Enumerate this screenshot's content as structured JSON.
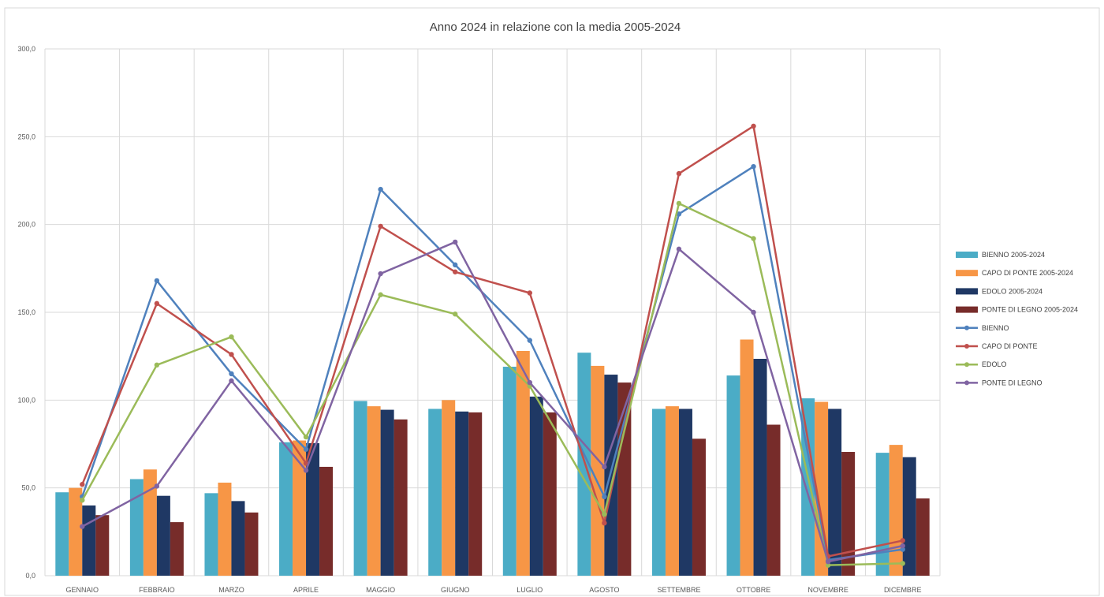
{
  "chart_data": {
    "type": "bar",
    "title": "Anno 2024 in relazione con la media 2005-2024",
    "xlabel": "",
    "ylabel": "",
    "ylim": [
      0,
      300
    ],
    "yticks": [
      0,
      50,
      100,
      150,
      200,
      250,
      300
    ],
    "ytick_labels": [
      "0,0",
      "50,0",
      "100,0",
      "150,0",
      "200,0",
      "250,0",
      "300,0"
    ],
    "grid": true,
    "legend_position": "right",
    "categories": [
      "GENNAIO",
      "FEBBRAIO",
      "MARZO",
      "APRILE",
      "MAGGIO",
      "GIUGNO",
      "LUGLIO",
      "AGOSTO",
      "SETTEMBRE",
      "OTTOBRE",
      "NOVEMBRE",
      "DICEMBRE"
    ],
    "bar_series": [
      {
        "name": "BIENNO 2005-2024",
        "color": "#4bacc6",
        "values": [
          47.5,
          55,
          47,
          76,
          99.5,
          95,
          119,
          127,
          95,
          114,
          101,
          70
        ]
      },
      {
        "name": "CAPO DI PONTE 2005-2024",
        "color": "#f79646",
        "values": [
          50,
          60.5,
          53,
          77,
          96.5,
          100,
          128,
          119.5,
          96.5,
          134.5,
          99,
          74.5
        ]
      },
      {
        "name": "EDOLO 2005-2024",
        "color": "#1f3864",
        "values": [
          40,
          45.5,
          42.5,
          75.5,
          94.5,
          93.5,
          102,
          114.5,
          95,
          123.5,
          95,
          67.5
        ]
      },
      {
        "name": "PONTE DI LEGNO 2005-2024",
        "color": "#772c2a",
        "values": [
          34.5,
          30.5,
          36,
          62,
          89,
          93,
          93,
          110,
          78,
          86,
          70.5,
          44
        ]
      }
    ],
    "line_series": [
      {
        "name": "BIENNO",
        "color": "#4f81bd",
        "values": [
          45,
          168,
          115,
          72,
          220,
          177,
          134,
          45,
          206,
          233,
          9,
          15
        ]
      },
      {
        "name": "CAPO DI PONTE",
        "color": "#c0504d",
        "values": [
          52,
          155,
          126,
          64,
          199,
          173,
          161,
          30,
          229,
          256,
          11,
          20
        ]
      },
      {
        "name": "EDOLO",
        "color": "#9bbb59",
        "values": [
          43,
          120,
          136,
          79,
          160,
          149,
          108,
          35,
          212,
          192,
          6,
          7
        ]
      },
      {
        "name": "PONTE DI LEGNO",
        "color": "#8064a2",
        "values": [
          28,
          51,
          111,
          60,
          172,
          190,
          110,
          62,
          186,
          150,
          8,
          17
        ]
      }
    ]
  }
}
